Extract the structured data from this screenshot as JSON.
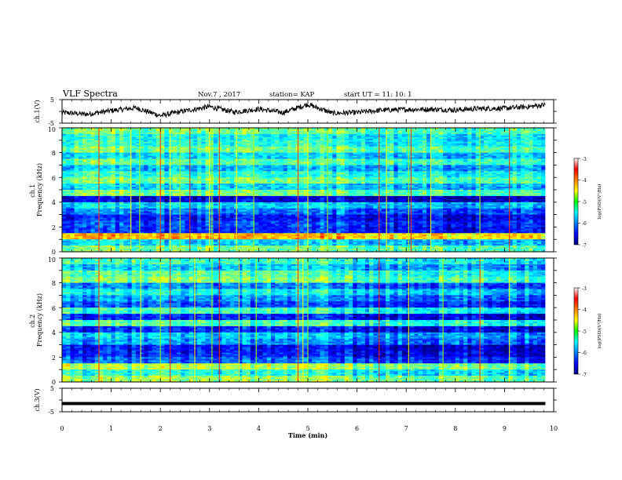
{
  "header": {
    "title": "VLF Spectra",
    "date": "Nov.7  , 2017",
    "station": "station= KAP",
    "start": "start  UT  =   11: 10: 1"
  },
  "chart_data": [
    {
      "type": "line",
      "panel": "ch1-waveform",
      "ylabel": "ch.1(V)",
      "ylim": [
        -5,
        5
      ],
      "yticks": [
        "5",
        "-5"
      ],
      "xlim": [
        0,
        10
      ],
      "series": [
        {
          "x": [
            0,
            0.5,
            1,
            1.5,
            2,
            2.5,
            3,
            3.5,
            4,
            4.5,
            5,
            5.5,
            6,
            6.5,
            7,
            7.5,
            8,
            8.5,
            9,
            9.5,
            9.83
          ],
          "values": [
            -0.5,
            -1.2,
            0.3,
            1.5,
            -1.8,
            0.2,
            2.0,
            -0.3,
            1.0,
            -0.5,
            3.0,
            -0.8,
            -0.5,
            0.5,
            0.8,
            0.9,
            0.6,
            1.2,
            1.3,
            2.0,
            2.8
          ]
        }
      ],
      "color": "#000000"
    },
    {
      "type": "heatmap",
      "panel": "ch1-spectrogram",
      "ylabel": "ch.1\nFrequency  (kHz)",
      "ylim": [
        0,
        10
      ],
      "yticks": [
        "0",
        "2",
        "4",
        "6",
        "8",
        "10"
      ],
      "xlim": [
        0,
        10
      ],
      "colorbar": {
        "label": "log(PSD)(V²/Hz)",
        "range": [
          -7,
          -3
        ],
        "ticks": [
          "-3",
          "-4",
          "-5",
          "-6",
          "-7"
        ]
      },
      "band_profile": [
        -5.0,
        -5.6,
        -4.2,
        -6.3,
        -6.2,
        -6.4,
        -6.0,
        -5.6,
        -6.6,
        -5.0,
        -5.6,
        -5.0,
        -5.3,
        -5.7,
        -5.1,
        -5.6,
        -5.0,
        -5.3,
        -5.4,
        -5.0
      ],
      "vertical_lines": [
        0.75,
        1.4,
        1.58,
        2.0,
        2.2,
        2.4,
        2.6,
        3.0,
        3.05,
        3.2,
        3.55,
        3.9,
        4.8,
        5.0,
        5.4,
        6.45,
        6.6,
        7.05,
        7.1,
        7.5,
        8.5,
        9.1
      ]
    },
    {
      "type": "heatmap",
      "panel": "ch2-spectrogram",
      "ylabel": "ch.2\nFrequency  (kHz)",
      "ylim": [
        0,
        10
      ],
      "yticks": [
        "0",
        "2",
        "4",
        "6",
        "8",
        "10"
      ],
      "xlim": [
        0,
        10
      ],
      "colorbar": {
        "label": "log(PSD)(V²/Hz)",
        "range": [
          -7,
          -3
        ],
        "ticks": [
          "-3",
          "-4",
          "-5",
          "-6",
          "-7"
        ]
      },
      "band_profile": [
        -4.9,
        -5.4,
        -4.8,
        -6.1,
        -6.4,
        -6.5,
        -5.9,
        -5.7,
        -6.4,
        -5.2,
        -6.4,
        -5.3,
        -6.2,
        -5.9,
        -5.5,
        -6.0,
        -5.0,
        -5.2,
        -5.7,
        -5.3
      ],
      "vertical_lines": [
        0.75,
        1.6,
        2.0,
        2.2,
        2.7,
        3.05,
        3.2,
        3.6,
        3.95,
        4.8,
        4.9,
        5.0,
        6.45,
        7.05,
        7.75,
        8.5,
        9.1
      ]
    },
    {
      "type": "line",
      "panel": "ch3-waveform",
      "ylabel": "ch.3(V)",
      "ylim": [
        -5,
        5
      ],
      "yticks": [
        "5",
        "-5"
      ],
      "xlim": [
        0,
        10
      ],
      "xlabel": "Time  (min)",
      "xticks": [
        "0",
        "1",
        "2",
        "3",
        "4",
        "5",
        "6",
        "7",
        "8",
        "9",
        "10"
      ],
      "series": [
        {
          "x": [
            0,
            9.83
          ],
          "values": [
            -1.5,
            -1.5
          ]
        }
      ],
      "color": "#000000"
    }
  ]
}
